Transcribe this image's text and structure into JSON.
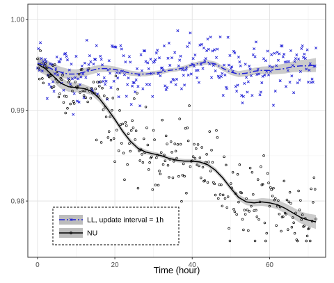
{
  "chart_data": {
    "type": "scatter",
    "title": "",
    "xlabel": "Time (hour)",
    "ylabel": "",
    "xlim": [
      -2.5,
      74.5
    ],
    "ylim": [
      0.9738,
      1.0017
    ],
    "x_ticks": [
      0,
      20,
      40,
      60
    ],
    "x_tick_labels": [
      "0",
      "20",
      "40",
      "60"
    ],
    "y_ticks": [
      0.98,
      0.99,
      1.0
    ],
    "y_tick_labels": [
      "0.98",
      "0.99",
      "1.00"
    ],
    "grid": true,
    "legend_position": "bottom-left",
    "series": [
      {
        "name": "LL, update interval = 1h",
        "color": "#1f1fd6",
        "marker": "x",
        "line_style": "dashdot",
        "smooth_x": [
          0,
          2,
          4,
          6,
          8,
          10,
          12,
          14,
          16,
          18,
          20,
          22,
          24,
          26,
          28,
          30,
          32,
          34,
          36,
          38,
          40,
          42,
          44,
          46,
          48,
          50,
          52,
          54,
          56,
          58,
          60,
          62,
          64,
          66,
          68,
          70,
          72
        ],
        "smooth_y": [
          0.9952,
          0.9949,
          0.9945,
          0.9942,
          0.994,
          0.994,
          0.9942,
          0.9944,
          0.9946,
          0.9946,
          0.9945,
          0.9943,
          0.9941,
          0.994,
          0.994,
          0.9941,
          0.9942,
          0.9944,
          0.9945,
          0.9947,
          0.995,
          0.9952,
          0.9953,
          0.9951,
          0.9946,
          0.9942,
          0.994,
          0.9941,
          0.9943,
          0.9944,
          0.9944,
          0.9945,
          0.9946,
          0.9948,
          0.9949,
          0.9949,
          0.995
        ]
      },
      {
        "name": "NU",
        "color": "#000000",
        "marker": "o",
        "line_style": "solid",
        "smooth_x": [
          0,
          2,
          4,
          6,
          8,
          10,
          12,
          14,
          16,
          18,
          20,
          22,
          24,
          26,
          28,
          30,
          32,
          34,
          36,
          38,
          40,
          42,
          44,
          46,
          48,
          50,
          52,
          54,
          56,
          58,
          60,
          62,
          64,
          66,
          68,
          70,
          72
        ],
        "smooth_y": [
          0.9951,
          0.9946,
          0.9938,
          0.993,
          0.9926,
          0.9925,
          0.9924,
          0.9921,
          0.9913,
          0.9902,
          0.989,
          0.9877,
          0.9866,
          0.9858,
          0.9854,
          0.9852,
          0.985,
          0.9847,
          0.9845,
          0.9844,
          0.9844,
          0.9843,
          0.984,
          0.9834,
          0.9825,
          0.9814,
          0.9804,
          0.9799,
          0.9798,
          0.9799,
          0.9798,
          0.9796,
          0.9792,
          0.9787,
          0.9782,
          0.9779,
          0.9777
        ]
      }
    ]
  },
  "legend": {
    "entries": [
      {
        "label": "LL, update interval = 1h",
        "color": "#1f1fd6",
        "line_style": "dashdot",
        "marker": "x"
      },
      {
        "label": "NU",
        "color": "#000000",
        "line_style": "solid",
        "marker": "o"
      }
    ]
  }
}
